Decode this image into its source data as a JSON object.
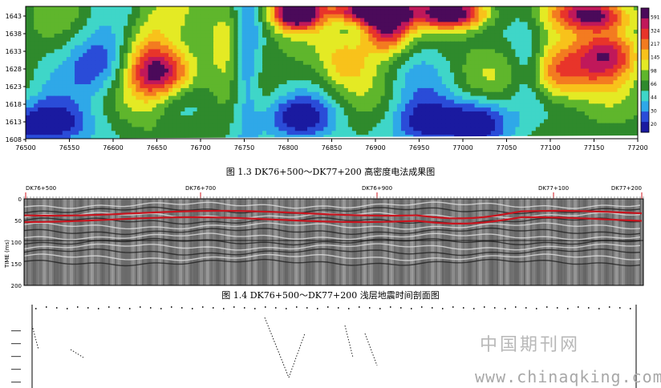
{
  "figure_1": {
    "caption": "图 1.3  DK76+500～DK77+200 高密度电法成果图",
    "y_ticks": [
      "1643",
      "1638",
      "1633",
      "1628",
      "1623",
      "1618",
      "1613",
      "1608"
    ],
    "x_ticks": [
      "76500",
      "76550",
      "76600",
      "76650",
      "76700",
      "76750",
      "76800",
      "76850",
      "76900",
      "76950",
      "77000",
      "77050",
      "77100",
      "77150",
      "77200"
    ],
    "colorbar_labels": [
      "591",
      "324",
      "217",
      "145",
      "98",
      "66",
      "44",
      "30",
      "20"
    ],
    "colorbar_colors": [
      "#4b0a5a",
      "#c0185a",
      "#e8342a",
      "#f37b20",
      "#f8c21b",
      "#e4ea24",
      "#5fb62c",
      "#2f8a2c",
      "#3fd6c8",
      "#2fa8e8",
      "#2a4cd8",
      "#1a1aa0"
    ]
  },
  "figure_2": {
    "caption": "图 1.4  DK76+500～DK77+200 浅层地震时间剖面图",
    "station_labels": [
      "DK76+500",
      "DK76+700",
      "DK76+900",
      "DK77+100",
      "DK77+200"
    ],
    "y_axis_label": "TIME (ms)",
    "y_ticks": [
      "0",
      "50",
      "100",
      "150",
      "200"
    ]
  },
  "watermark": {
    "text_cn": "中国期刊网",
    "url": "www.chinaqking.com"
  },
  "chart_data": [
    {
      "type": "heatmap",
      "title": "",
      "xlabel": "",
      "ylabel": "",
      "xlim": [
        76500,
        77200
      ],
      "ylim": [
        1608,
        1645
      ],
      "legend": "right",
      "colorbar_values": [
        591,
        324,
        217,
        145,
        98,
        66,
        44,
        30,
        20
      ]
    },
    {
      "type": "heatmap",
      "title": "",
      "ylabel": "TIME (ms)",
      "ylim": [
        0,
        200
      ],
      "x_stations": [
        "DK76+500",
        "DK76+700",
        "DK76+900",
        "DK77+100",
        "DK77+200"
      ]
    }
  ]
}
